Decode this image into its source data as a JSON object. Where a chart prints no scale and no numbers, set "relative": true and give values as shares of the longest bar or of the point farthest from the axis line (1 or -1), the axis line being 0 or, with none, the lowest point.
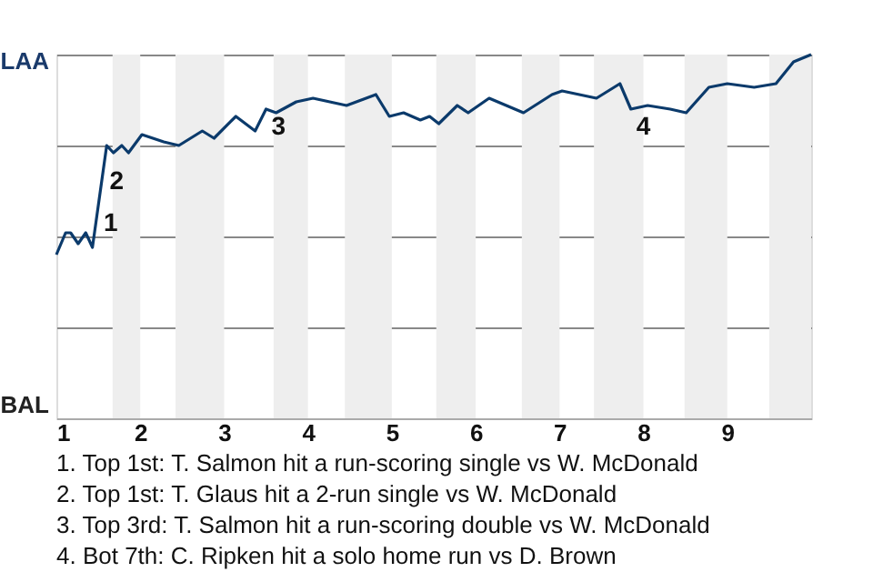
{
  "chart_data": {
    "type": "line",
    "relative": true,
    "x": [
      1.0,
      1.11,
      1.17,
      1.26,
      1.35,
      1.43,
      1.6,
      1.68,
      1.78,
      1.86,
      2.02,
      2.28,
      2.46,
      2.74,
      2.88,
      3.14,
      3.37,
      3.5,
      3.62,
      3.86,
      4.06,
      4.46,
      4.81,
      4.97,
      5.14,
      5.34,
      5.45,
      5.56,
      5.78,
      5.91,
      6.16,
      6.57,
      6.91,
      7.03,
      7.44,
      7.72,
      7.85,
      8.05,
      8.32,
      8.51,
      8.78,
      9.0,
      9.32,
      9.58,
      9.79,
      10.0
    ],
    "series": [
      {
        "color": "#0b3a6b",
        "values": [
          0.45,
          0.51,
          0.51,
          0.48,
          0.51,
          0.47,
          0.75,
          0.73,
          0.75,
          0.73,
          0.78,
          0.76,
          0.75,
          0.79,
          0.77,
          0.83,
          0.79,
          0.85,
          0.84,
          0.87,
          0.88,
          0.86,
          0.89,
          0.83,
          0.84,
          0.82,
          0.83,
          0.81,
          0.86,
          0.84,
          0.88,
          0.84,
          0.89,
          0.9,
          0.88,
          0.92,
          0.85,
          0.86,
          0.85,
          0.84,
          0.91,
          0.92,
          0.91,
          0.92,
          0.98,
          1.0
        ]
      }
    ],
    "xlim": [
      1,
      10
    ],
    "xticks": [
      1,
      2,
      3,
      4,
      5,
      6,
      7,
      8,
      9
    ],
    "grid": "y",
    "legend": false,
    "bands": [
      {
        "axis": "x",
        "from": 1.67,
        "to": 2,
        "color": "#eeeeee"
      },
      {
        "axis": "x",
        "from": 2.42,
        "to": 3,
        "color": "#eeeeee"
      },
      {
        "axis": "x",
        "from": 3.59,
        "to": 4,
        "color": "#eeeeee"
      },
      {
        "axis": "x",
        "from": 4.44,
        "to": 5,
        "color": "#eeeeee"
      },
      {
        "axis": "x",
        "from": 5.53,
        "to": 6,
        "color": "#eeeeee"
      },
      {
        "axis": "x",
        "from": 6.55,
        "to": 7,
        "color": "#eeeeee"
      },
      {
        "axis": "x",
        "from": 7.41,
        "to": 8,
        "color": "#eeeeee"
      },
      {
        "axis": "x",
        "from": 8.49,
        "to": 9,
        "color": "#eeeeee"
      },
      {
        "axis": "x",
        "from": 9.5,
        "to": 10,
        "color": "#eeeeee"
      }
    ],
    "annotations": [
      "LAA",
      "BAL",
      {
        "text": "1",
        "x": 1.5,
        "y": 0.585
      },
      {
        "text": "2",
        "x": 1.57,
        "y": 0.7
      },
      {
        "text": "3",
        "x": 3.5,
        "y": 0.85
      },
      {
        "text": "4",
        "x": 7.85,
        "y": 0.85
      },
      "1. Top 1st: T. Salmon hit a run-scoring single vs W. McDonald",
      "2. Top 1st: T. Glaus hit a 2-run single vs W. McDonald",
      "3. Top 3rd: T. Salmon hit a run-scoring double vs W. McDonald",
      "4. Bot 7th: C. Ripken hit a solo home run vs D. Brown"
    ]
  }
}
